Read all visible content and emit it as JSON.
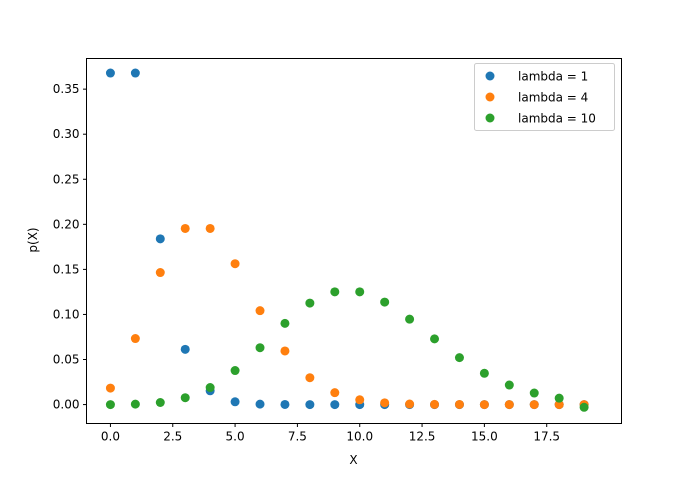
{
  "chart_data": {
    "type": "scatter",
    "title": "",
    "xlabel": "X",
    "ylabel": "p(X)",
    "xlim": [
      -0.96,
      20.5
    ],
    "ylim": [
      -0.021,
      0.384
    ],
    "grid": false,
    "legend_position": "top-right",
    "x_ticks": [
      0,
      2.5,
      5,
      7.5,
      10,
      12.5,
      15,
      17.5
    ],
    "x_tick_labels": [
      "0.0",
      "2.5",
      "5.0",
      "7.5",
      "10.0",
      "12.5",
      "15.0",
      "17.5"
    ],
    "y_ticks": [
      0,
      0.05,
      0.1,
      0.15,
      0.2,
      0.25,
      0.3,
      0.35
    ],
    "y_tick_labels": [
      "0.00",
      "0.05",
      "0.10",
      "0.15",
      "0.20",
      "0.25",
      "0.30",
      "0.35"
    ],
    "x": [
      0,
      1,
      2,
      3,
      4,
      5,
      6,
      7,
      8,
      9,
      10,
      11,
      12,
      13,
      14,
      15,
      16,
      17,
      18,
      19
    ],
    "series": [
      {
        "name": "lambda = 1",
        "color": "#1f77b4",
        "values": [
          0.3679,
          0.3679,
          0.1839,
          0.0613,
          0.0153,
          0.0031,
          0.0005,
          0.0001,
          0,
          0,
          0,
          0,
          0,
          0,
          0,
          0,
          0,
          0,
          0,
          0
        ]
      },
      {
        "name": "lambda = 4",
        "color": "#ff7f0e",
        "values": [
          0.0183,
          0.0733,
          0.1465,
          0.1954,
          0.1954,
          0.1563,
          0.1042,
          0.0595,
          0.0298,
          0.0132,
          0.0053,
          0.0019,
          0.0006,
          0.0002,
          0.0001,
          0,
          0,
          0,
          0,
          0
        ]
      },
      {
        "name": "lambda = 10",
        "color": "#2ca02c",
        "values": [
          0.0,
          0.0005,
          0.0023,
          0.0076,
          0.0189,
          0.0378,
          0.0631,
          0.0901,
          0.1126,
          0.1251,
          0.1251,
          0.1137,
          0.0948,
          0.0729,
          0.0521,
          0.0347,
          0.0217,
          0.0128,
          0.0071,
          -0.003
        ]
      }
    ]
  }
}
